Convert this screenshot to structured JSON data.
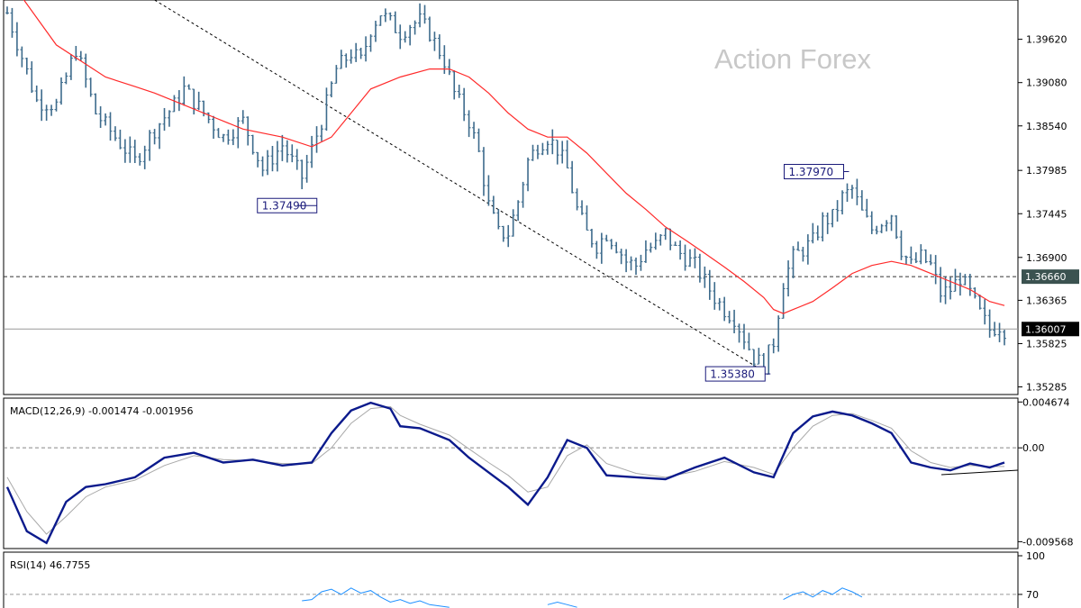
{
  "watermark": "Action Forex",
  "chart_data": [
    {
      "type": "ohlc",
      "panel": "price",
      "y_ticks": [
        1.35285,
        1.35825,
        1.36365,
        1.369,
        1.37445,
        1.37985,
        1.3854,
        1.3908,
        1.3962
      ],
      "y_tick_labels": [
        "1.35285",
        "1.35825",
        "1.36365",
        "1.36900",
        "1.37445",
        "1.37985",
        "1.38540",
        "1.39080",
        "1.39620"
      ],
      "ylim": [
        1.3519,
        1.4011
      ],
      "close_trace": [
        [
          0,
          1.3995
        ],
        [
          6,
          1.3885
        ],
        [
          10,
          1.388
        ],
        [
          14,
          1.395
        ],
        [
          18,
          1.387
        ],
        [
          22,
          1.384
        ],
        [
          26,
          1.381
        ],
        [
          30,
          1.385
        ],
        [
          34,
          1.388
        ],
        [
          36,
          1.39
        ],
        [
          40,
          1.387
        ],
        [
          44,
          1.384
        ],
        [
          48,
          1.386
        ],
        [
          52,
          1.38
        ],
        [
          56,
          1.383
        ],
        [
          60,
          1.379
        ],
        [
          64,
          1.386
        ],
        [
          67,
          1.3925
        ],
        [
          70,
          1.3945
        ],
        [
          72,
          1.3935
        ],
        [
          74,
          1.3975
        ],
        [
          76,
          1.3995
        ],
        [
          80,
          1.397
        ],
        [
          82,
          1.398
        ],
        [
          84,
          1.3985
        ],
        [
          86,
          1.397
        ],
        [
          89,
          1.3935
        ],
        [
          91,
          1.3895
        ],
        [
          94,
          1.386
        ],
        [
          96,
          1.382
        ],
        [
          98,
          1.3755
        ],
        [
          100,
          1.372
        ],
        [
          102,
          1.372
        ],
        [
          104,
          1.376
        ],
        [
          106,
          1.381
        ],
        [
          108,
          1.383
        ],
        [
          110,
          1.384
        ],
        [
          112,
          1.3825
        ],
        [
          114,
          1.38
        ],
        [
          116,
          1.375
        ],
        [
          118,
          1.372
        ],
        [
          120,
          1.3705
        ],
        [
          122,
          1.372
        ],
        [
          124,
          1.3705
        ],
        [
          126,
          1.3685
        ],
        [
          128,
          1.368
        ],
        [
          130,
          1.37
        ],
        [
          132,
          1.3705
        ],
        [
          134,
          1.372
        ],
        [
          136,
          1.37
        ],
        [
          138,
          1.369
        ],
        [
          140,
          1.368
        ],
        [
          142,
          1.366
        ],
        [
          144,
          1.364
        ],
        [
          146,
          1.3625
        ],
        [
          148,
          1.3615
        ],
        [
          150,
          1.359
        ],
        [
          152,
          1.3565
        ],
        [
          154,
          1.3555
        ],
        [
          156,
          1.3585
        ],
        [
          158,
          1.366
        ],
        [
          160,
          1.369
        ],
        [
          162,
          1.37
        ],
        [
          164,
          1.371
        ],
        [
          166,
          1.3735
        ],
        [
          168,
          1.374
        ],
        [
          170,
          1.3765
        ],
        [
          172,
          1.3775
        ],
        [
          174,
          1.3745
        ],
        [
          176,
          1.3725
        ],
        [
          178,
          1.3735
        ],
        [
          180,
          1.3745
        ],
        [
          182,
          1.37
        ],
        [
          184,
          1.368
        ],
        [
          186,
          1.369
        ],
        [
          188,
          1.368
        ],
        [
          190,
          1.3645
        ],
        [
          192,
          1.365
        ],
        [
          194,
          1.3665
        ],
        [
          196,
          1.3645
        ],
        [
          198,
          1.362
        ],
        [
          200,
          1.36
        ],
        [
          202,
          1.3605
        ],
        [
          203,
          1.36
        ]
      ],
      "ma_trace": [
        [
          0,
          1.404
        ],
        [
          10,
          1.3955
        ],
        [
          20,
          1.3915
        ],
        [
          26,
          1.3903
        ],
        [
          30,
          1.3895
        ],
        [
          36,
          1.388
        ],
        [
          42,
          1.3865
        ],
        [
          48,
          1.385
        ],
        [
          56,
          1.384
        ],
        [
          62,
          1.3828
        ],
        [
          66,
          1.384
        ],
        [
          70,
          1.387
        ],
        [
          74,
          1.39
        ],
        [
          80,
          1.3915
        ],
        [
          86,
          1.3925
        ],
        [
          90,
          1.3925
        ],
        [
          94,
          1.3915
        ],
        [
          98,
          1.3895
        ],
        [
          102,
          1.387
        ],
        [
          106,
          1.385
        ],
        [
          110,
          1.384
        ],
        [
          114,
          1.384
        ],
        [
          118,
          1.382
        ],
        [
          122,
          1.3795
        ],
        [
          126,
          1.377
        ],
        [
          130,
          1.375
        ],
        [
          134,
          1.3728
        ],
        [
          138,
          1.3712
        ],
        [
          142,
          1.3695
        ],
        [
          146,
          1.3678
        ],
        [
          150,
          1.366
        ],
        [
          154,
          1.364
        ],
        [
          156,
          1.3625
        ],
        [
          158,
          1.362
        ],
        [
          160,
          1.3625
        ],
        [
          164,
          1.3635
        ],
        [
          168,
          1.3652
        ],
        [
          172,
          1.367
        ],
        [
          176,
          1.368
        ],
        [
          180,
          1.3685
        ],
        [
          184,
          1.368
        ],
        [
          188,
          1.367
        ],
        [
          192,
          1.366
        ],
        [
          196,
          1.365
        ],
        [
          200,
          1.3635
        ],
        [
          203,
          1.363
        ]
      ],
      "n_bars": 204,
      "horizontal_levels": [
        {
          "price": 1.3666,
          "label": "1.36660",
          "style": "dashed",
          "tag_color": "#3b5250"
        },
        {
          "price": 1.36007,
          "label": "1.36007",
          "style": "solid",
          "tag_color": "#000000"
        }
      ],
      "trendline": {
        "from": [
          30,
          1.4011
        ],
        "to": [
          154,
          1.3548
        ]
      },
      "annotations": [
        {
          "text": "1.37490",
          "bar": 59,
          "price": 1.3749
        },
        {
          "text": "1.35380",
          "bar": 155,
          "price": 1.3538
        },
        {
          "text": "1.37970",
          "bar": 171,
          "price": 1.3797
        }
      ],
      "colors": {
        "bars": "#3d6b8c",
        "ma": "#ff2a2a",
        "trendline": "#000000",
        "label": "#1a1a7a"
      }
    },
    {
      "type": "line",
      "panel": "macd",
      "title": "MACD(12,26,9) -0.001474 -0.001956",
      "y_ticks": [
        0.004674,
        0.0,
        -0.009568
      ],
      "y_tick_labels": [
        "0.004674",
        "0.00",
        "-0.009568"
      ],
      "ylim": [
        -0.0099,
        0.0047
      ],
      "series": [
        {
          "values": [
            [
              0,
              -0.004
            ],
            [
              4,
              -0.0085
            ],
            [
              8,
              -0.0097
            ],
            [
              12,
              -0.0055
            ],
            [
              16,
              -0.004
            ],
            [
              20,
              -0.0037
            ],
            [
              26,
              -0.003
            ],
            [
              32,
              -0.001
            ],
            [
              38,
              -0.0005
            ],
            [
              44,
              -0.0015
            ],
            [
              50,
              -0.0012
            ],
            [
              56,
              -0.0018
            ],
            [
              62,
              -0.0015
            ],
            [
              66,
              0.0015
            ],
            [
              70,
              0.0038
            ],
            [
              74,
              0.0046
            ],
            [
              78,
              0.004
            ],
            [
              80,
              0.0022
            ],
            [
              84,
              0.002
            ],
            [
              90,
              0.0008
            ],
            [
              94,
              -0.001
            ],
            [
              98,
              -0.0025
            ],
            [
              102,
              -0.004
            ],
            [
              106,
              -0.0058
            ],
            [
              110,
              -0.003
            ],
            [
              114,
              0.0008
            ],
            [
              118,
              0.0
            ],
            [
              122,
              -0.0028
            ],
            [
              128,
              -0.003
            ],
            [
              134,
              -0.0032
            ],
            [
              140,
              -0.002
            ],
            [
              146,
              -0.001
            ],
            [
              152,
              -0.0025
            ],
            [
              156,
              -0.003
            ],
            [
              160,
              0.0015
            ],
            [
              164,
              0.0032
            ],
            [
              168,
              0.0037
            ],
            [
              172,
              0.0033
            ],
            [
              176,
              0.0025
            ],
            [
              180,
              0.0015
            ],
            [
              184,
              -0.0015
            ],
            [
              188,
              -0.002
            ],
            [
              192,
              -0.0023
            ],
            [
              196,
              -0.0016
            ],
            [
              200,
              -0.002
            ],
            [
              203,
              -0.0015
            ]
          ],
          "color": "#0b1a8c"
        },
        {
          "values": [
            [
              0,
              -0.003
            ],
            [
              4,
              -0.0065
            ],
            [
              8,
              -0.0088
            ],
            [
              12,
              -0.007
            ],
            [
              16,
              -0.005
            ],
            [
              20,
              -0.004
            ],
            [
              26,
              -0.0033
            ],
            [
              32,
              -0.0018
            ],
            [
              38,
              -0.0008
            ],
            [
              44,
              -0.0012
            ],
            [
              50,
              -0.0013
            ],
            [
              56,
              -0.0016
            ],
            [
              62,
              -0.0016
            ],
            [
              66,
              0.0
            ],
            [
              70,
              0.0025
            ],
            [
              74,
              0.004
            ],
            [
              78,
              0.0042
            ],
            [
              80,
              0.0033
            ],
            [
              84,
              0.0024
            ],
            [
              90,
              0.0013
            ],
            [
              94,
              -0.0001
            ],
            [
              98,
              -0.0015
            ],
            [
              102,
              -0.0028
            ],
            [
              106,
              -0.0045
            ],
            [
              110,
              -0.004
            ],
            [
              114,
              -0.0008
            ],
            [
              118,
              0.0003
            ],
            [
              122,
              -0.0016
            ],
            [
              128,
              -0.0026
            ],
            [
              134,
              -0.003
            ],
            [
              140,
              -0.0024
            ],
            [
              146,
              -0.0014
            ],
            [
              152,
              -0.002
            ],
            [
              156,
              -0.0027
            ],
            [
              160,
              0.0
            ],
            [
              164,
              0.0022
            ],
            [
              168,
              0.0033
            ],
            [
              172,
              0.0035
            ],
            [
              176,
              0.0028
            ],
            [
              180,
              0.002
            ],
            [
              184,
              -0.0003
            ],
            [
              188,
              -0.0015
            ],
            [
              192,
              -0.002
            ],
            [
              196,
              -0.0018
            ],
            [
              200,
              -0.0019
            ],
            [
              203,
              -0.0019
            ]
          ],
          "color": "#a9a9a9"
        }
      ]
    },
    {
      "type": "line",
      "panel": "rsi",
      "title": "RSI(14) 46.7755",
      "y_ticks": [
        100,
        70
      ],
      "y_tick_labels": [
        "100",
        "70"
      ],
      "ylim": [
        0,
        100
      ],
      "visible_bar_range": [
        60,
        175
      ],
      "series": [
        {
          "values": [
            [
              60,
              65
            ],
            [
              62,
              66
            ],
            [
              64,
              72
            ],
            [
              66,
              74
            ],
            [
              68,
              70
            ],
            [
              70,
              75
            ],
            [
              72,
              71
            ],
            [
              74,
              73
            ],
            [
              76,
              68
            ],
            [
              78,
              64
            ],
            [
              80,
              66
            ],
            [
              82,
              63
            ],
            [
              84,
              65
            ],
            [
              86,
              62
            ],
            [
              90,
              60
            ],
            [
              110,
              62
            ],
            [
              112,
              64
            ],
            [
              114,
              62
            ],
            [
              116,
              60
            ],
            [
              158,
              66
            ],
            [
              160,
              70
            ],
            [
              162,
              72
            ],
            [
              164,
              68
            ],
            [
              166,
              73
            ],
            [
              168,
              70
            ],
            [
              170,
              75
            ],
            [
              172,
              72
            ],
            [
              174,
              68
            ]
          ],
          "color": "#1e90ff"
        }
      ]
    }
  ]
}
